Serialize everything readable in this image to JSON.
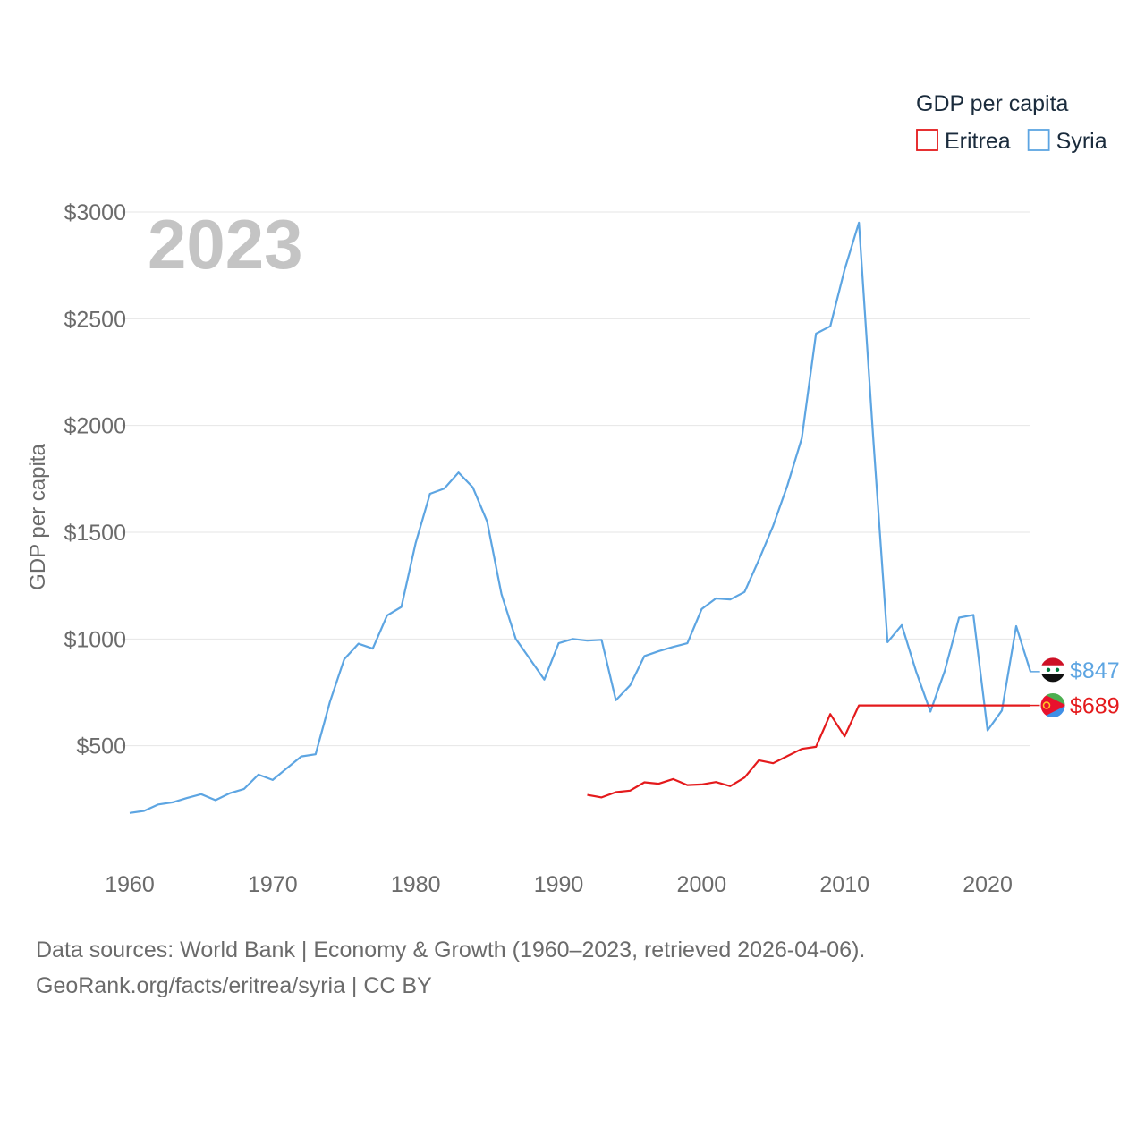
{
  "chart_data": {
    "type": "line",
    "title": "",
    "year_label": "2023",
    "ylabel": "GDP per capita",
    "xlabel": "",
    "xlim": [
      1960,
      2023
    ],
    "ylim": [
      0,
      3000
    ],
    "x_ticks": [
      1960,
      1970,
      1980,
      1990,
      2000,
      2010,
      2020
    ],
    "y_ticks": [
      {
        "value": 500,
        "label": "$500"
      },
      {
        "value": 1000,
        "label": "$1000"
      },
      {
        "value": 1500,
        "label": "$1500"
      },
      {
        "value": 2000,
        "label": "$2000"
      },
      {
        "value": 2500,
        "label": "$2500"
      },
      {
        "value": 3000,
        "label": "$3000"
      }
    ],
    "grid": true,
    "legend": {
      "title": "GDP per capita",
      "position": "top-right",
      "entries": [
        {
          "name": "Eritrea",
          "color": "#e41a1c"
        },
        {
          "name": "Syria",
          "color": "#5da5e2"
        }
      ]
    },
    "series": [
      {
        "name": "Syria",
        "color": "#5da5e2",
        "end_label": "$847",
        "x": [
          1960,
          1961,
          1962,
          1963,
          1964,
          1965,
          1966,
          1967,
          1968,
          1969,
          1970,
          1971,
          1972,
          1973,
          1974,
          1975,
          1976,
          1977,
          1978,
          1979,
          1980,
          1981,
          1982,
          1983,
          1984,
          1985,
          1986,
          1987,
          1988,
          1989,
          1990,
          1991,
          1992,
          1993,
          1994,
          1995,
          1996,
          1997,
          1998,
          1999,
          2000,
          2001,
          2002,
          2003,
          2004,
          2005,
          2006,
          2007,
          2008,
          2009,
          2010,
          2011,
          2012,
          2013,
          2014,
          2015,
          2016,
          2017,
          2018,
          2019,
          2020,
          2021,
          2022,
          2023
        ],
        "values": [
          185,
          195,
          225,
          235,
          255,
          273,
          245,
          278,
          298,
          365,
          340,
          395,
          450,
          460,
          705,
          905,
          978,
          955,
          1110,
          1150,
          1450,
          1680,
          1705,
          1780,
          1710,
          1550,
          1210,
          1000,
          905,
          810,
          980,
          1000,
          992,
          996,
          713,
          783,
          920,
          943,
          963,
          980,
          1140,
          1190,
          1185,
          1220,
          1370,
          1530,
          1720,
          1940,
          2430,
          2465,
          2730,
          2950,
          1940,
          985,
          1065,
          848,
          660,
          850,
          1100,
          1113,
          572,
          665,
          1060,
          847
        ]
      },
      {
        "name": "Eritrea",
        "color": "#e41a1c",
        "end_label": "$689",
        "x": [
          1992,
          1993,
          1994,
          1995,
          1996,
          1997,
          1998,
          1999,
          2000,
          2001,
          2002,
          2003,
          2004,
          2005,
          2006,
          2007,
          2008,
          2009,
          2010,
          2011,
          2012,
          2013,
          2014,
          2015,
          2016,
          2017,
          2018,
          2019,
          2020,
          2021,
          2022,
          2023
        ],
        "values": [
          270,
          258,
          283,
          290,
          329,
          322,
          344,
          316,
          319,
          330,
          311,
          351,
          432,
          418,
          452,
          485,
          495,
          648,
          544,
          689,
          689,
          689,
          689,
          689,
          689,
          689,
          689,
          689,
          689,
          689,
          689,
          689
        ]
      }
    ],
    "end_markers": [
      {
        "series": "Syria",
        "icon": "syria-flag-icon"
      },
      {
        "series": "Eritrea",
        "icon": "eritrea-flag-icon"
      }
    ]
  },
  "footer": {
    "source_line": "Data sources: World Bank | Economy & Growth (1960–2023, retrieved 2026-04-06).",
    "credit_line": "GeoRank.org/facts/eritrea/syria | CC BY"
  }
}
